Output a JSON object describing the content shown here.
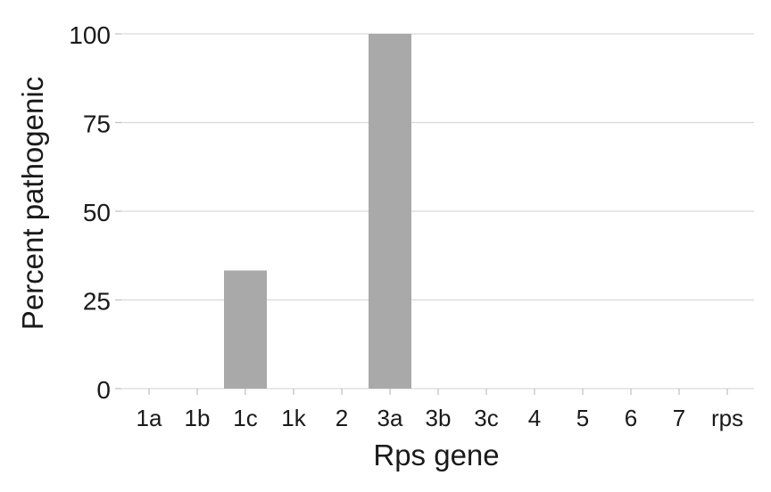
{
  "chart_data": {
    "type": "bar",
    "categories": [
      "1a",
      "1b",
      "1c",
      "1k",
      "2",
      "3a",
      "3b",
      "3c",
      "4",
      "5",
      "6",
      "7",
      "rps"
    ],
    "values": [
      0,
      0,
      33.3,
      0,
      0,
      100,
      0,
      0,
      0,
      0,
      0,
      0,
      0
    ],
    "title": "",
    "xlabel": "Rps gene",
    "ylabel": "Percent pathogenic",
    "ylim": [
      0,
      100
    ],
    "yticks": [
      0,
      25,
      50,
      75,
      100
    ],
    "grid": "horizontal major gridlines",
    "legend": "none",
    "bar_color": "#a9a9a9",
    "grid_color": "#d9d9d9",
    "tick_color": "#bfbfbf"
  }
}
